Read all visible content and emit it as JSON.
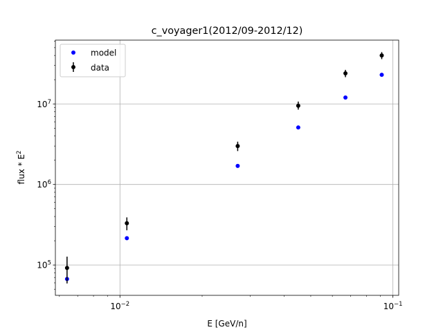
{
  "chart_data": {
    "type": "scatter",
    "title": "c_voyager1(2012/09-2012/12)",
    "xlabel": "E [GeV/n]",
    "ylabel": "flux * E",
    "ylabel_sup": "2",
    "xscale": "log",
    "yscale": "log",
    "xlim": [
      0.0058,
      0.105
    ],
    "ylim": [
      42000,
      62000000
    ],
    "grid": true,
    "legend_position": "top-left",
    "x_ticks": [
      {
        "value": 0.01,
        "base": "10",
        "exp": "−2"
      },
      {
        "value": 0.1,
        "base": "10",
        "exp": "−1"
      }
    ],
    "y_ticks": [
      {
        "value": 100000,
        "base": "10",
        "exp": "5"
      },
      {
        "value": 1000000,
        "base": "10",
        "exp": "6"
      },
      {
        "value": 10000000,
        "base": "10",
        "exp": "7"
      }
    ],
    "series": [
      {
        "name": "model",
        "color": "#0000ff",
        "x": [
          0.0064,
          0.0106,
          0.027,
          0.045,
          0.067,
          0.091
        ],
        "y": [
          67000,
          215000,
          1700000,
          5100000,
          12000000,
          23000000
        ]
      },
      {
        "name": "data",
        "color": "#000000",
        "x": [
          0.0064,
          0.0106,
          0.027,
          0.045,
          0.067,
          0.091
        ],
        "y": [
          92000,
          330000,
          3000000,
          9500000,
          24000000,
          40000000
        ],
        "err_low": [
          33000,
          60000,
          400000,
          1000000,
          2500000,
          4000000
        ],
        "err_high": [
          35000,
          60000,
          400000,
          1200000,
          2500000,
          4000000
        ]
      }
    ]
  }
}
